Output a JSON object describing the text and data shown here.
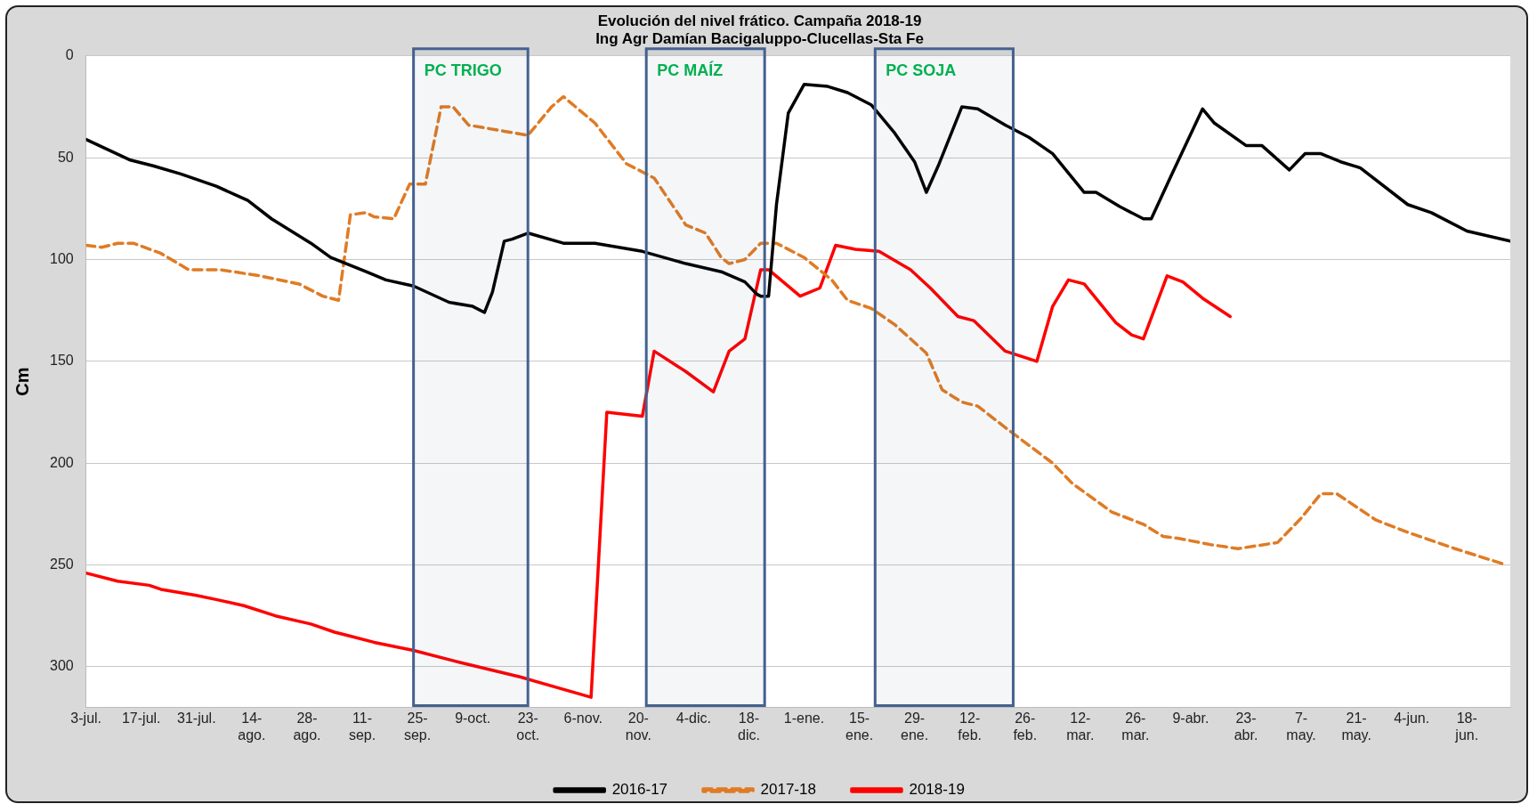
{
  "chart_data": {
    "type": "line",
    "title": "Evolución del nivel frático. Campaña 2018-19",
    "subtitle": "Ing Agr Damían Bacigaluppo-Clucellas-Sta Fe",
    "ylabel": "Cm",
    "xlim": [
      "2018-07-03",
      "2019-06-29"
    ],
    "ylim": [
      320,
      0
    ],
    "yticks": [
      0,
      50,
      100,
      150,
      200,
      250,
      300
    ],
    "xticks": [
      {
        "value": "2018-07-03",
        "label": "3-jul."
      },
      {
        "value": "2018-07-17",
        "label": "17-jul."
      },
      {
        "value": "2018-07-31",
        "label": "31-jul."
      },
      {
        "value": "2018-08-14",
        "label": "14- ago."
      },
      {
        "value": "2018-08-28",
        "label": "28- ago."
      },
      {
        "value": "2018-09-11",
        "label": "11- sep."
      },
      {
        "value": "2018-09-25",
        "label": "25- sep."
      },
      {
        "value": "2018-10-09",
        "label": "9-oct."
      },
      {
        "value": "2018-10-23",
        "label": "23- oct."
      },
      {
        "value": "2018-11-06",
        "label": "6-nov."
      },
      {
        "value": "2018-11-20",
        "label": "20- nov."
      },
      {
        "value": "2018-12-04",
        "label": "4-dic."
      },
      {
        "value": "2018-12-18",
        "label": "18- dic."
      },
      {
        "value": "2019-01-01",
        "label": "1-ene."
      },
      {
        "value": "2019-01-15",
        "label": "15- ene."
      },
      {
        "value": "2019-01-29",
        "label": "29- ene."
      },
      {
        "value": "2019-02-12",
        "label": "12- feb."
      },
      {
        "value": "2019-02-26",
        "label": "26- feb."
      },
      {
        "value": "2019-03-12",
        "label": "12- mar."
      },
      {
        "value": "2019-03-26",
        "label": "26- mar."
      },
      {
        "value": "2019-04-09",
        "label": "9-abr."
      },
      {
        "value": "2019-04-23",
        "label": "23- abr."
      },
      {
        "value": "2019-05-07",
        "label": "7- may."
      },
      {
        "value": "2019-05-21",
        "label": "21- may."
      },
      {
        "value": "2019-06-04",
        "label": "4-jun."
      },
      {
        "value": "2019-06-18",
        "label": "18- jun."
      }
    ],
    "grid": "y",
    "legend": "bottom",
    "marker": "none",
    "bands": [
      {
        "axis": "x",
        "from": "2018-09-24",
        "to": "2018-10-23",
        "label": "PC TRIGO",
        "color": "#44618f"
      },
      {
        "axis": "x",
        "from": "2018-11-22",
        "to": "2018-12-22",
        "label": "PC MAÍZ",
        "color": "#44618f"
      },
      {
        "axis": "x",
        "from": "2019-01-19",
        "to": "2019-02-23",
        "label": "PC SOJA",
        "color": "#44618f"
      }
    ],
    "series": [
      {
        "name": "2016-17",
        "color": "#000000",
        "line_style": "solid",
        "x": [
          "2018-07-03",
          "2018-07-14",
          "2018-07-20",
          "2018-07-27",
          "2018-08-05",
          "2018-08-13",
          "2018-08-19",
          "2018-08-29",
          "2018-09-03",
          "2018-09-12",
          "2018-09-17",
          "2018-09-24",
          "2018-10-03",
          "2018-10-09",
          "2018-10-12",
          "2018-10-14",
          "2018-10-17",
          "2018-10-19",
          "2018-10-23",
          "2018-11-01",
          "2018-11-09",
          "2018-11-21",
          "2018-12-02",
          "2018-12-11",
          "2018-12-17",
          "2018-12-20",
          "2018-12-21",
          "2018-12-23",
          "2018-12-25",
          "2018-12-28",
          "2019-01-01",
          "2019-01-07",
          "2019-01-12",
          "2019-01-18",
          "2019-01-24",
          "2019-01-29",
          "2019-02-01",
          "2019-02-04",
          "2019-02-10",
          "2019-02-14",
          "2019-02-21",
          "2019-02-27",
          "2019-03-05",
          "2019-03-13",
          "2019-03-16",
          "2019-03-22",
          "2019-03-28",
          "2019-03-30",
          "2019-04-04",
          "2019-04-12",
          "2019-04-15",
          "2019-04-23",
          "2019-04-27",
          "2019-05-04",
          "2019-05-08",
          "2019-05-12",
          "2019-05-17",
          "2019-05-22",
          "2019-06-03",
          "2019-06-09",
          "2019-06-18",
          "2019-06-29"
        ],
        "values": [
          41,
          51,
          54,
          58,
          64,
          71,
          80,
          92,
          99,
          106,
          110,
          113,
          121,
          123,
          126,
          116,
          91,
          90,
          87,
          92,
          92,
          96,
          102,
          106,
          111,
          117,
          118,
          118,
          73,
          28,
          14,
          15,
          18,
          24,
          38,
          52,
          67,
          54,
          25,
          26,
          34,
          40,
          48,
          67,
          67,
          74,
          80,
          80,
          59,
          26,
          33,
          44,
          44,
          56,
          48,
          48,
          52,
          55,
          73,
          77,
          86,
          91
        ]
      },
      {
        "name": "2017-18",
        "color": "#e07b24",
        "line_style": "dashed",
        "x": [
          "2018-07-03",
          "2018-07-07",
          "2018-07-11",
          "2018-07-15",
          "2018-07-22",
          "2018-07-29",
          "2018-08-06",
          "2018-08-16",
          "2018-08-26",
          "2018-09-01",
          "2018-09-05",
          "2018-09-08",
          "2018-09-12",
          "2018-09-14",
          "2018-09-19",
          "2018-09-23",
          "2018-09-27",
          "2018-10-01",
          "2018-10-04",
          "2018-10-08",
          "2018-10-11",
          "2018-10-17",
          "2018-10-23",
          "2018-10-29",
          "2018-11-01",
          "2018-11-09",
          "2018-11-17",
          "2018-11-24",
          "2018-12-02",
          "2018-12-07",
          "2018-12-11",
          "2018-12-13",
          "2018-12-17",
          "2018-12-21",
          "2018-12-25",
          "2019-01-01",
          "2019-01-08",
          "2019-01-12",
          "2019-01-18",
          "2019-01-24",
          "2019-02-01",
          "2019-02-05",
          "2019-02-10",
          "2019-02-14",
          "2019-02-22",
          "2019-03-05",
          "2019-03-10",
          "2019-03-20",
          "2019-03-28",
          "2019-04-02",
          "2019-04-06",
          "2019-04-14",
          "2019-04-21",
          "2019-05-01",
          "2019-05-07",
          "2019-05-12",
          "2019-05-16",
          "2019-05-26",
          "2019-06-03",
          "2019-06-15",
          "2019-06-28"
        ],
        "values": [
          93,
          94,
          92,
          92,
          97,
          105,
          105,
          108,
          112,
          118,
          120,
          78,
          77,
          79,
          80,
          63,
          63,
          25,
          25,
          34,
          35,
          37,
          39,
          25,
          20,
          33,
          53,
          60,
          83,
          87,
          99,
          102,
          100,
          92,
          92,
          99,
          110,
          120,
          124,
          132,
          146,
          164,
          170,
          172,
          184,
          200,
          210,
          224,
          230,
          236,
          237,
          240,
          242,
          239,
          227,
          215,
          215,
          228,
          234,
          242,
          250
        ]
      },
      {
        "name": "2018-19",
        "color": "#ff0000",
        "line_style": "solid",
        "x": [
          "2018-07-03",
          "2018-07-11",
          "2018-07-19",
          "2018-07-22",
          "2018-07-31",
          "2018-08-05",
          "2018-08-12",
          "2018-08-20",
          "2018-08-29",
          "2018-09-04",
          "2018-09-08",
          "2018-09-14",
          "2018-09-24",
          "2018-10-06",
          "2018-10-21",
          "2018-11-08",
          "2018-11-12",
          "2018-11-21",
          "2018-11-24",
          "2018-12-02",
          "2018-12-09",
          "2018-12-13",
          "2018-12-17",
          "2018-12-21",
          "2018-12-23",
          "2018-12-31",
          "2019-01-05",
          "2019-01-09",
          "2019-01-14",
          "2019-01-20",
          "2019-01-28",
          "2019-02-02",
          "2019-02-09",
          "2019-02-13",
          "2019-02-21",
          "2019-03-01",
          "2019-03-05",
          "2019-03-09",
          "2019-03-13",
          "2019-03-21",
          "2019-03-25",
          "2019-03-28",
          "2019-04-03",
          "2019-04-07",
          "2019-04-12",
          "2019-04-19"
        ],
        "values": [
          254,
          258,
          260,
          262,
          265,
          267,
          270,
          275,
          279,
          283,
          285,
          288,
          292,
          298,
          305,
          315,
          175,
          177,
          145,
          155,
          165,
          145,
          139,
          105,
          105,
          118,
          114,
          93,
          95,
          96,
          105,
          114,
          128,
          130,
          145,
          150,
          123,
          110,
          112,
          131,
          137,
          139,
          108,
          111,
          119,
          128
        ]
      }
    ]
  }
}
